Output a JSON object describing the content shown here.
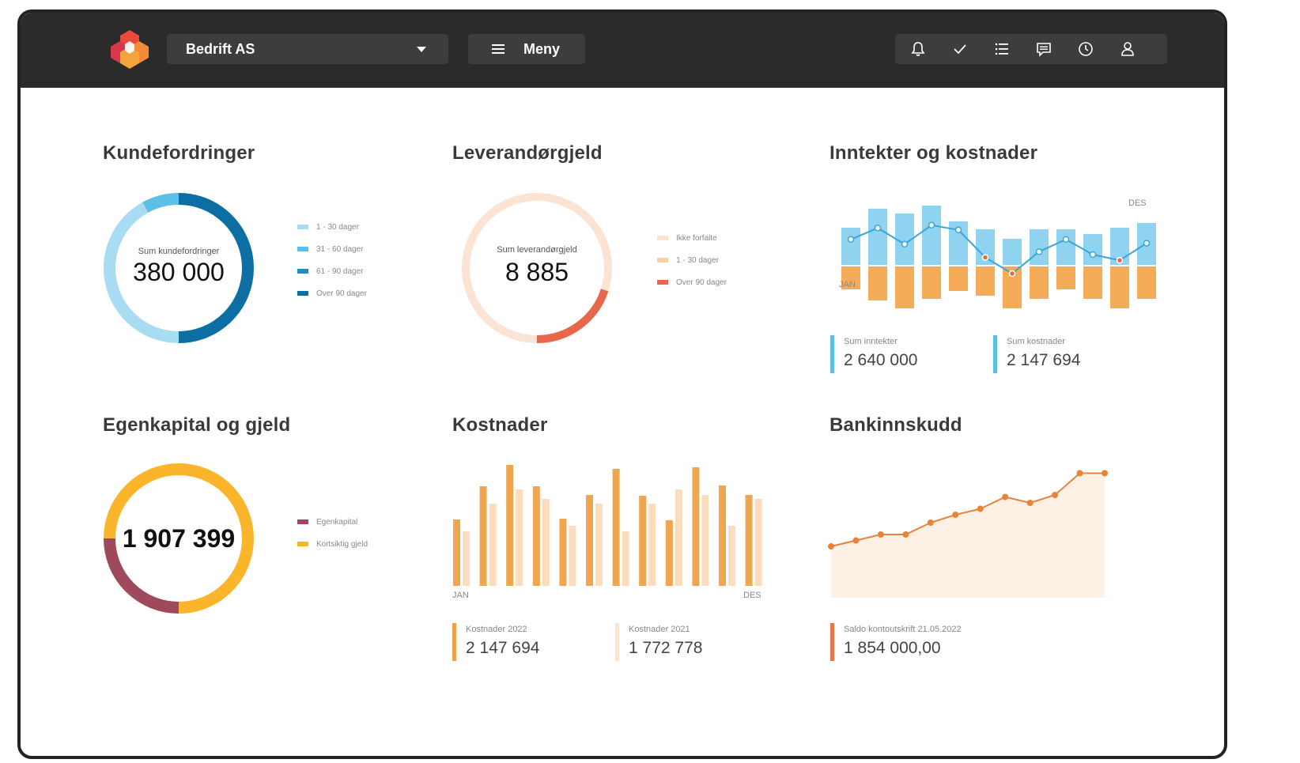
{
  "header": {
    "company": "Bedrift AS",
    "menu_label": "Meny",
    "icons": [
      "bell-icon",
      "check-icon",
      "list-icon",
      "chat-icon",
      "clock-icon",
      "user-icon"
    ]
  },
  "colors": {
    "topbar": "#2b2b2b",
    "blue_light": "#a8dcf2",
    "blue_mid": "#5bbfe6",
    "blue": "#1b8ec8",
    "blue_dark": "#0d6ea3",
    "peach_light": "#fbe4d3",
    "peach": "#f9cfa6",
    "red_orange": "#e8664a",
    "orange": "#f0a049",
    "maroon": "#9e4a5a",
    "yellow": "#fbb52a"
  },
  "kundefordringer": {
    "title": "Kundefordringer",
    "center_label": "Sum kundefordringer",
    "center_value": "380 000",
    "legend": [
      "1 - 30 dager",
      "31 - 60 dager",
      "61 - 90 dager",
      "Over 90 dager"
    ]
  },
  "leverandorgjeld": {
    "title": "Leverandørgjeld",
    "center_label": "Sum  leverandørgjeld",
    "center_value": "8 885",
    "legend": [
      "Ikke forfalte",
      "1 - 30 dager",
      "Over 90 dager"
    ]
  },
  "inntekter": {
    "title": "Inntekter og kostnader",
    "label_start": "JAN",
    "label_end": "DES",
    "kpi_income_label": "Sum inntekter",
    "kpi_income_value": "2 640 000",
    "kpi_cost_label": "Sum kostnader",
    "kpi_cost_value": "2 147 694"
  },
  "egenkapital": {
    "title": "Egenkapital og gjeld",
    "center_value": "1 907 399",
    "legend": [
      "Egenkapital",
      "Kortsiktig gjeld"
    ]
  },
  "kostnader": {
    "title": "Kostnader",
    "label_start": "JAN",
    "label_end": "DES",
    "kpi_2022_label": "Kostnader 2022",
    "kpi_2022_value": "2 147 694",
    "kpi_2021_label": "Kostnader 2021",
    "kpi_2021_value": "1 772 778"
  },
  "bank": {
    "title": "Bankinnskudd",
    "kpi_label": "Saldo kontoutskrift 21.05.2022",
    "kpi_value": "1 854 000,00"
  },
  "chart_data": [
    {
      "type": "pie",
      "title": "Kundefordringer",
      "categories": [
        "1 - 30 dager",
        "31 - 60 dager",
        "61 - 90 dager",
        "Over 90 dager"
      ],
      "values": [
        0.42,
        0.08,
        0.0,
        0.5
      ]
    },
    {
      "type": "pie",
      "title": "Leverandørgjeld",
      "categories": [
        "Ikke forfalte",
        "1 - 30 dager",
        "Over 90 dager"
      ],
      "values": [
        0.8,
        0.0,
        0.2
      ]
    },
    {
      "type": "bar",
      "title": "Inntekter og kostnader",
      "categories": [
        "JAN",
        "",
        "",
        "",
        "",
        "",
        "",
        "",
        "",
        "",
        "",
        "DES"
      ],
      "series": [
        {
          "name": "Sum inntekter",
          "values": [
            48,
            72,
            66,
            76,
            56,
            46,
            34,
            46,
            46,
            40,
            48,
            54
          ]
        },
        {
          "name": "Sum kostnader",
          "values": [
            -30,
            -44,
            -54,
            -42,
            -32,
            -38,
            -54,
            -42,
            -30,
            -42,
            -54,
            -42
          ]
        },
        {
          "values": [
            16,
            28,
            11,
            31,
            26,
            -3,
            -20,
            3,
            16,
            0,
            -6,
            12
          ]
        }
      ]
    },
    {
      "type": "pie",
      "title": "Egenkapital og gjeld",
      "categories": [
        "Egenkapital",
        "Kortsiktig gjeld"
      ],
      "values": [
        0.25,
        0.75
      ]
    },
    {
      "type": "bar",
      "title": "Kostnader",
      "categories": [
        "JAN",
        "",
        "",
        "",
        "",
        "",
        "",
        "",
        "",
        "",
        "",
        "DES"
      ],
      "series": [
        {
          "name": "Kostnader 2022",
          "values": [
            84,
            126,
            153,
            126,
            85,
            115,
            148,
            114,
            83,
            150,
            127,
            115
          ]
        },
        {
          "name": "Kostnader 2021",
          "values": [
            69,
            104,
            122,
            110,
            76,
            104,
            69,
            104,
            122,
            115,
            76,
            110
          ]
        }
      ]
    },
    {
      "type": "area",
      "title": "Bankinnskudd",
      "values": [
        1.5,
        1.53,
        1.56,
        1.56,
        1.62,
        1.66,
        1.69,
        1.75,
        1.72,
        1.76,
        1.87,
        1.87
      ]
    }
  ]
}
